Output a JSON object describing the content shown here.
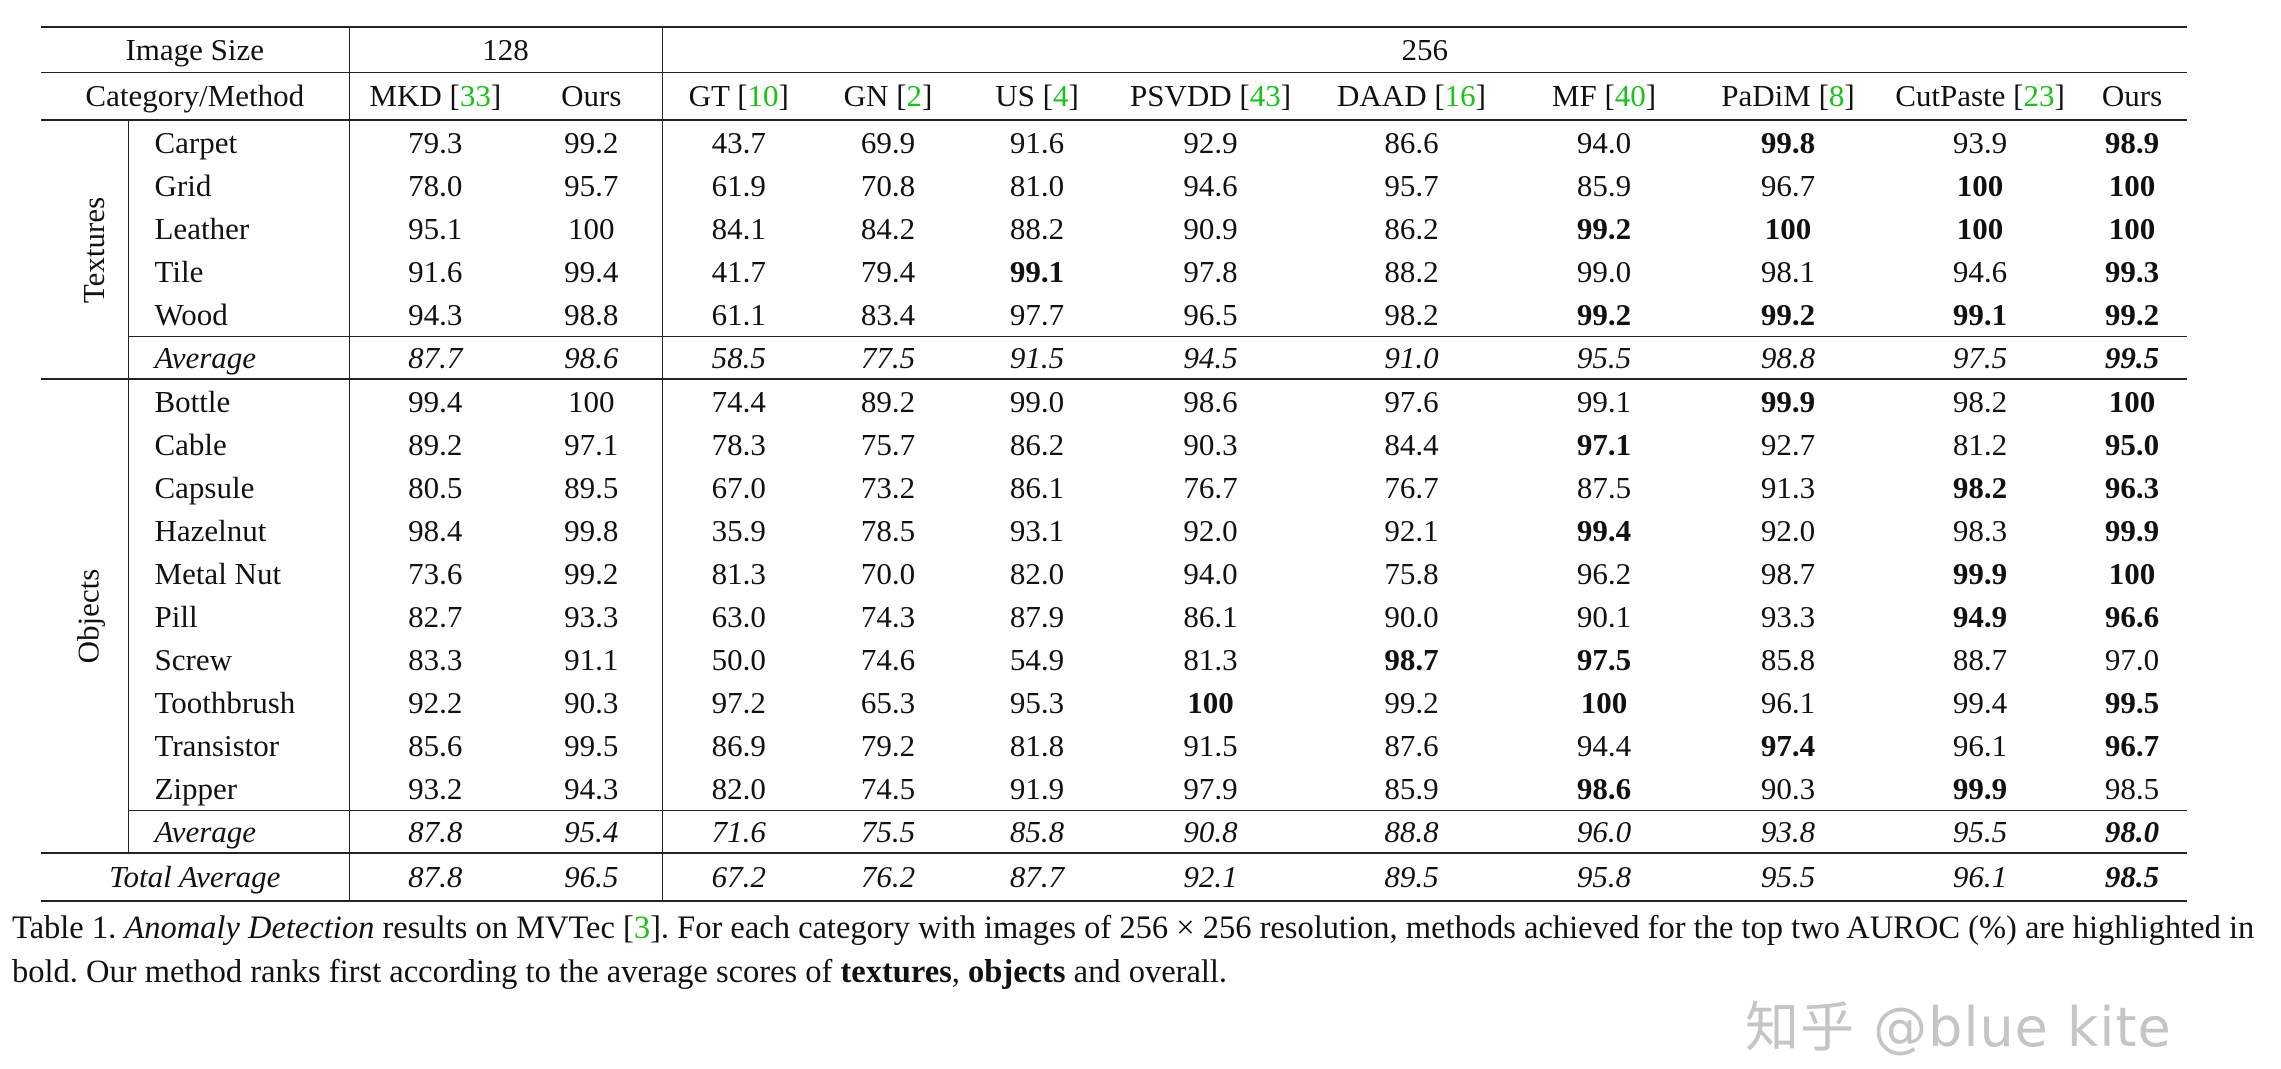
{
  "header": {
    "image_size_label": "Image Size",
    "size_128": "128",
    "size_256": "256",
    "category_method_label": "Category/Method",
    "methods": [
      {
        "name": "MKD",
        "cite": "33"
      },
      {
        "name": "Ours",
        "cite": ""
      },
      {
        "name": "GT",
        "cite": "10"
      },
      {
        "name": "GN",
        "cite": "2"
      },
      {
        "name": "US",
        "cite": "4"
      },
      {
        "name": "PSVDD",
        "cite": "43"
      },
      {
        "name": "DAAD",
        "cite": "16"
      },
      {
        "name": "MF",
        "cite": "40"
      },
      {
        "name": "PaDiM",
        "cite": "8"
      },
      {
        "name": "CutPaste",
        "cite": "23"
      },
      {
        "name": "Ours",
        "cite": ""
      }
    ]
  },
  "groups": [
    {
      "label": "Textures",
      "rows": [
        {
          "name": "Carpet",
          "cells": [
            {
              "v": "79.3"
            },
            {
              "v": "99.2"
            },
            {
              "v": "43.7"
            },
            {
              "v": "69.9"
            },
            {
              "v": "91.6"
            },
            {
              "v": "92.9"
            },
            {
              "v": "86.6"
            },
            {
              "v": "94.0"
            },
            {
              "v": "99.8",
              "b": true
            },
            {
              "v": "93.9"
            },
            {
              "v": "98.9",
              "b": true
            }
          ]
        },
        {
          "name": "Grid",
          "cells": [
            {
              "v": "78.0"
            },
            {
              "v": "95.7"
            },
            {
              "v": "61.9"
            },
            {
              "v": "70.8"
            },
            {
              "v": "81.0"
            },
            {
              "v": "94.6"
            },
            {
              "v": "95.7"
            },
            {
              "v": "85.9"
            },
            {
              "v": "96.7"
            },
            {
              "v": "100",
              "b": true
            },
            {
              "v": "100",
              "b": true
            }
          ]
        },
        {
          "name": "Leather",
          "cells": [
            {
              "v": "95.1"
            },
            {
              "v": "100"
            },
            {
              "v": "84.1"
            },
            {
              "v": "84.2"
            },
            {
              "v": "88.2"
            },
            {
              "v": "90.9"
            },
            {
              "v": "86.2"
            },
            {
              "v": "99.2",
              "b": true
            },
            {
              "v": "100",
              "b": true
            },
            {
              "v": "100",
              "b": true
            },
            {
              "v": "100",
              "b": true
            }
          ]
        },
        {
          "name": "Tile",
          "cells": [
            {
              "v": "91.6"
            },
            {
              "v": "99.4"
            },
            {
              "v": "41.7"
            },
            {
              "v": "79.4"
            },
            {
              "v": "99.1",
              "b": true
            },
            {
              "v": "97.8"
            },
            {
              "v": "88.2"
            },
            {
              "v": "99.0"
            },
            {
              "v": "98.1"
            },
            {
              "v": "94.6"
            },
            {
              "v": "99.3",
              "b": true
            }
          ]
        },
        {
          "name": "Wood",
          "cells": [
            {
              "v": "94.3"
            },
            {
              "v": "98.8"
            },
            {
              "v": "61.1"
            },
            {
              "v": "83.4"
            },
            {
              "v": "97.7"
            },
            {
              "v": "96.5"
            },
            {
              "v": "98.2"
            },
            {
              "v": "99.2",
              "b": true
            },
            {
              "v": "99.2",
              "b": true
            },
            {
              "v": "99.1",
              "b": true
            },
            {
              "v": "99.2",
              "b": true
            }
          ]
        }
      ],
      "average": {
        "name": "Average",
        "cells": [
          {
            "v": "87.7"
          },
          {
            "v": "98.6"
          },
          {
            "v": "58.5"
          },
          {
            "v": "77.5"
          },
          {
            "v": "91.5"
          },
          {
            "v": "94.5"
          },
          {
            "v": "91.0"
          },
          {
            "v": "95.5"
          },
          {
            "v": "98.8"
          },
          {
            "v": "97.5"
          },
          {
            "v": "99.5",
            "b": true
          }
        ]
      }
    },
    {
      "label": "Objects",
      "rows": [
        {
          "name": "Bottle",
          "cells": [
            {
              "v": "99.4"
            },
            {
              "v": "100"
            },
            {
              "v": "74.4"
            },
            {
              "v": "89.2"
            },
            {
              "v": "99.0"
            },
            {
              "v": "98.6"
            },
            {
              "v": "97.6"
            },
            {
              "v": "99.1"
            },
            {
              "v": "99.9",
              "b": true
            },
            {
              "v": "98.2"
            },
            {
              "v": "100",
              "b": true
            }
          ]
        },
        {
          "name": "Cable",
          "cells": [
            {
              "v": "89.2"
            },
            {
              "v": "97.1"
            },
            {
              "v": "78.3"
            },
            {
              "v": "75.7"
            },
            {
              "v": "86.2"
            },
            {
              "v": "90.3"
            },
            {
              "v": "84.4"
            },
            {
              "v": "97.1",
              "b": true
            },
            {
              "v": "92.7"
            },
            {
              "v": "81.2"
            },
            {
              "v": "95.0",
              "b": true
            }
          ]
        },
        {
          "name": "Capsule",
          "cells": [
            {
              "v": "80.5"
            },
            {
              "v": "89.5"
            },
            {
              "v": "67.0"
            },
            {
              "v": "73.2"
            },
            {
              "v": "86.1"
            },
            {
              "v": "76.7"
            },
            {
              "v": "76.7"
            },
            {
              "v": "87.5"
            },
            {
              "v": "91.3"
            },
            {
              "v": "98.2",
              "b": true
            },
            {
              "v": "96.3",
              "b": true
            }
          ]
        },
        {
          "name": "Hazelnut",
          "cells": [
            {
              "v": "98.4"
            },
            {
              "v": "99.8"
            },
            {
              "v": "35.9"
            },
            {
              "v": "78.5"
            },
            {
              "v": "93.1"
            },
            {
              "v": "92.0"
            },
            {
              "v": "92.1"
            },
            {
              "v": "99.4",
              "b": true
            },
            {
              "v": "92.0"
            },
            {
              "v": "98.3"
            },
            {
              "v": "99.9",
              "b": true
            }
          ]
        },
        {
          "name": "Metal Nut",
          "cells": [
            {
              "v": "73.6"
            },
            {
              "v": "99.2"
            },
            {
              "v": "81.3"
            },
            {
              "v": "70.0"
            },
            {
              "v": "82.0"
            },
            {
              "v": "94.0"
            },
            {
              "v": "75.8"
            },
            {
              "v": "96.2"
            },
            {
              "v": "98.7"
            },
            {
              "v": "99.9",
              "b": true
            },
            {
              "v": "100",
              "b": true
            }
          ]
        },
        {
          "name": "Pill",
          "cells": [
            {
              "v": "82.7"
            },
            {
              "v": "93.3"
            },
            {
              "v": "63.0"
            },
            {
              "v": "74.3"
            },
            {
              "v": "87.9"
            },
            {
              "v": "86.1"
            },
            {
              "v": "90.0"
            },
            {
              "v": "90.1"
            },
            {
              "v": "93.3"
            },
            {
              "v": "94.9",
              "b": true
            },
            {
              "v": "96.6",
              "b": true
            }
          ]
        },
        {
          "name": "Screw",
          "cells": [
            {
              "v": "83.3"
            },
            {
              "v": "91.1"
            },
            {
              "v": "50.0"
            },
            {
              "v": "74.6"
            },
            {
              "v": "54.9"
            },
            {
              "v": "81.3"
            },
            {
              "v": "98.7",
              "b": true
            },
            {
              "v": "97.5",
              "b": true
            },
            {
              "v": "85.8"
            },
            {
              "v": "88.7"
            },
            {
              "v": "97.0"
            }
          ]
        },
        {
          "name": "Toothbrush",
          "cells": [
            {
              "v": "92.2"
            },
            {
              "v": "90.3"
            },
            {
              "v": "97.2"
            },
            {
              "v": "65.3"
            },
            {
              "v": "95.3"
            },
            {
              "v": "100",
              "b": true
            },
            {
              "v": "99.2"
            },
            {
              "v": "100",
              "b": true
            },
            {
              "v": "96.1"
            },
            {
              "v": "99.4"
            },
            {
              "v": "99.5",
              "b": true
            }
          ]
        },
        {
          "name": "Transistor",
          "cells": [
            {
              "v": "85.6"
            },
            {
              "v": "99.5"
            },
            {
              "v": "86.9"
            },
            {
              "v": "79.2"
            },
            {
              "v": "81.8"
            },
            {
              "v": "91.5"
            },
            {
              "v": "87.6"
            },
            {
              "v": "94.4"
            },
            {
              "v": "97.4",
              "b": true
            },
            {
              "v": "96.1"
            },
            {
              "v": "96.7",
              "b": true
            }
          ]
        },
        {
          "name": "Zipper",
          "cells": [
            {
              "v": "93.2"
            },
            {
              "v": "94.3"
            },
            {
              "v": "82.0"
            },
            {
              "v": "74.5"
            },
            {
              "v": "91.9"
            },
            {
              "v": "97.9"
            },
            {
              "v": "85.9"
            },
            {
              "v": "98.6",
              "b": true
            },
            {
              "v": "90.3"
            },
            {
              "v": "99.9",
              "b": true
            },
            {
              "v": "98.5"
            }
          ]
        }
      ],
      "average": {
        "name": "Average",
        "cells": [
          {
            "v": "87.8"
          },
          {
            "v": "95.4"
          },
          {
            "v": "71.6"
          },
          {
            "v": "75.5"
          },
          {
            "v": "85.8"
          },
          {
            "v": "90.8"
          },
          {
            "v": "88.8"
          },
          {
            "v": "96.0"
          },
          {
            "v": "93.8"
          },
          {
            "v": "95.5"
          },
          {
            "v": "98.0",
            "b": true
          }
        ]
      }
    }
  ],
  "total": {
    "name": "Total Average",
    "cells": [
      {
        "v": "87.8"
      },
      {
        "v": "96.5"
      },
      {
        "v": "67.2"
      },
      {
        "v": "76.2"
      },
      {
        "v": "87.7"
      },
      {
        "v": "92.1"
      },
      {
        "v": "89.5"
      },
      {
        "v": "95.8"
      },
      {
        "v": "95.5"
      },
      {
        "v": "96.1"
      },
      {
        "v": "98.5",
        "b": true
      }
    ]
  },
  "caption": {
    "prefix": "Table 1. ",
    "italic": "Anomaly Detection",
    "part1": " results on MVTec [",
    "cite": "3",
    "part2": "]. For each category with images of 256 × 256 resolution, methods achieved for the top two AUROC (%) are highlighted in bold. Our method ranks first according to the average scores of ",
    "bold1": "textures",
    "sep": ", ",
    "bold2": "objects",
    "suffix": " and overall."
  },
  "watermark": "知乎 @blue kite",
  "colors": {
    "citation": "#17c417",
    "text": "#111111",
    "rule": "#222222"
  }
}
